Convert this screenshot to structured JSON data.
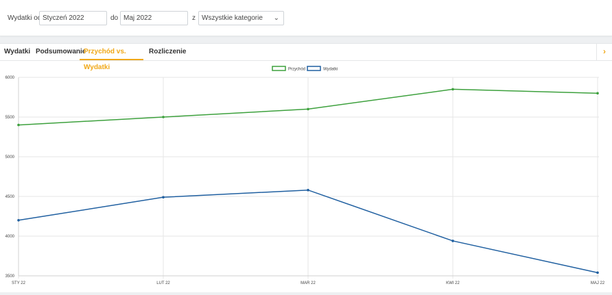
{
  "filters": {
    "from_label": "Wydatki od",
    "from_value": "Styczeń 2022",
    "to_label": "do",
    "to_value": "Maj 2022",
    "category_label": "z",
    "category_value": "Wszystkie kategorie"
  },
  "tabs": [
    {
      "label": "Wydatki"
    },
    {
      "label": "Podsumowanie"
    },
    {
      "label": "Przychód vs. Wydatki"
    },
    {
      "label": "Rozliczenie"
    }
  ],
  "chart_data": {
    "type": "line",
    "categories": [
      "STY 22",
      "LUT 22",
      "MAR 22",
      "KWI 22",
      "MAJ 22"
    ],
    "x_tick_labels": [
      "STY 22",
      "LUT 22",
      "MAR 22",
      "KWI 22",
      "MAJ 22"
    ],
    "series": [
      {
        "name": "Przychód",
        "color": "#3ca03c",
        "values": [
          5400,
          5500,
          5600,
          5850,
          5800
        ]
      },
      {
        "name": "Wydatki",
        "color": "#1f5fa0",
        "values": [
          4200,
          4490,
          4580,
          3940,
          3540
        ]
      }
    ],
    "ylim": [
      3500,
      6000
    ],
    "yticks": [
      3500,
      4000,
      4500,
      5000,
      5500,
      6000
    ],
    "legend": "top-center",
    "grid": true
  }
}
